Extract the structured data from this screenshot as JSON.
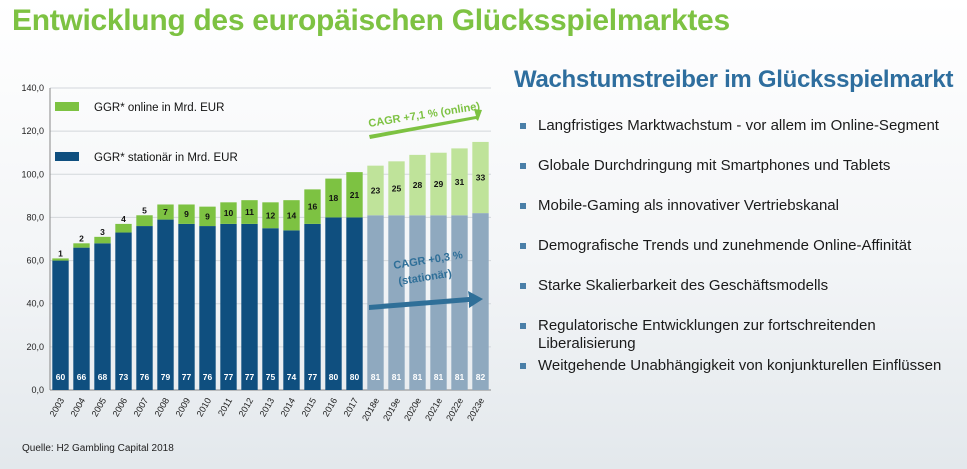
{
  "title": "Entwicklung des europäischen Glücksspielmarktes",
  "subtitle": "Wachstumstreiber im Glücksspielmarkt",
  "source": "Quelle: H2 Gambling Capital 2018",
  "drivers": [
    "Langfristiges Marktwachstum - vor allem im Online-Segment",
    "Globale Durchdringung mit Smartphones und Tablets",
    "Mobile-Gaming als innovativer Vertriebskanal",
    "Demografische Trends und zunehmende Online-Affinität",
    "Starke Skalierbarkeit des Geschäftsmodells",
    "Regulatorische Entwicklungen zur fortschreitenden Liberalisierung",
    "Weitgehende Unabhängigkeit von konjunkturellen Einflüssen"
  ],
  "colors": {
    "title": "#7dc242",
    "subtitle": "#2e6e9e",
    "online": "#7dc242",
    "online_forecast": "#bfe39a",
    "stationary": "#0f4f7f",
    "stationary_forecast": "#8fa9bf",
    "cagr_online": "#7dc242",
    "cagr_stationary": "#2f6f98",
    "bullet": "#4a7fa8"
  },
  "chart_data": {
    "type": "bar",
    "stacked": true,
    "categories": [
      "2003",
      "2004",
      "2005",
      "2006",
      "2007",
      "2008",
      "2009",
      "2010",
      "2011",
      "2012",
      "2013",
      "2014",
      "2015",
      "2016",
      "2017",
      "2018e",
      "2019e",
      "2020e",
      "2021e",
      "2022e",
      "2023e"
    ],
    "forecast_from": "2018e",
    "series": [
      {
        "name": "GGR* stationär in Mrd. EUR",
        "values": [
          60,
          66,
          68,
          73,
          76,
          79,
          77,
          76,
          77,
          77,
          75,
          74,
          77,
          80,
          80,
          81,
          81,
          81,
          81,
          81,
          82
        ]
      },
      {
        "name": "GGR* online in Mrd. EUR",
        "values": [
          1,
          2,
          3,
          4,
          5,
          7,
          9,
          9,
          10,
          11,
          12,
          14,
          16,
          18,
          21,
          23,
          25,
          28,
          29,
          31,
          33
        ]
      }
    ],
    "ylim": [
      0,
      140
    ],
    "yticks": [
      "0,0",
      "20,0",
      "40,0",
      "60,0",
      "80,0",
      "100,0",
      "120,0",
      "140,0"
    ],
    "grid": true,
    "legend_position": "top-left",
    "annotations": [
      {
        "text": "CAGR +7,1 % (online)"
      },
      {
        "text_line1": "CAGR +0,3 %",
        "text_line2": "(stationär)"
      }
    ]
  }
}
